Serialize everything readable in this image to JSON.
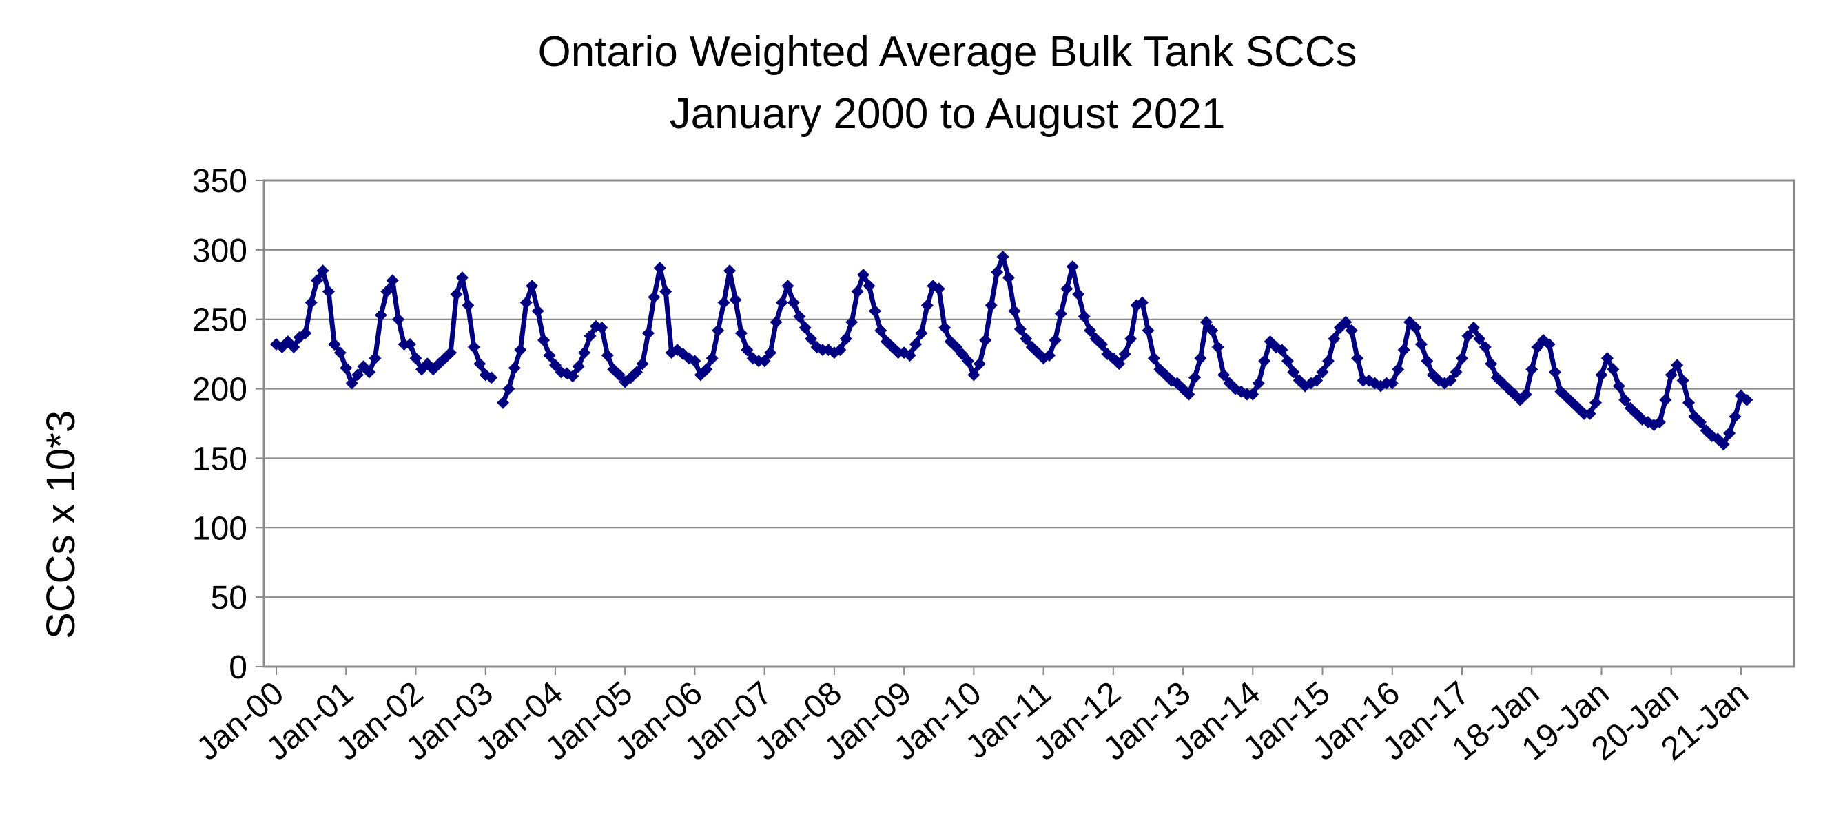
{
  "chart_data": {
    "type": "line",
    "title": "Ontario Weighted Average Bulk Tank SCCs",
    "subtitle": "January 2000 to August 2021",
    "ylabel": "SCCs x 10*3",
    "xlabel": "",
    "ylim": [
      0,
      350
    ],
    "yticks": [
      0,
      50,
      100,
      150,
      200,
      250,
      300,
      350
    ],
    "grid": true,
    "legend": "none",
    "x_tick_labels": [
      "Jan-00",
      "Jan-01",
      "Jan-02",
      "Jan-03",
      "Jan-04",
      "Jan-05",
      "Jan-06",
      "Jan-07",
      "Jan-08",
      "Jan-09",
      "Jan-10",
      "Jan-11",
      "Jan-12",
      "Jan-13",
      "Jan-14",
      "Jan-15",
      "Jan-16",
      "Jan-17",
      "18-Jan",
      "19-Jan",
      "20-Jan",
      "21-Jan"
    ],
    "x_start": "2000-01",
    "x_end": "2021-08",
    "series_color": "#000080",
    "series": [
      {
        "name": "",
        "segments": [
          {
            "start": "2000-01",
            "values": [
              232,
              230,
              234,
              230,
              237,
              240,
              262,
              278,
              285,
              270,
              232,
              226,
              215,
              204,
              210,
              216,
              212,
              222,
              253,
              270,
              278,
              250,
              232,
              232,
              222,
              214,
              218,
              214,
              218,
              222,
              226,
              268,
              280,
              260,
              230,
              218,
              210,
              208
            ]
          },
          {
            "start": "2003-04",
            "values": [
              190,
              200,
              215,
              228,
              262,
              274,
              256,
              235,
              224,
              217,
              212,
              211,
              209,
              216,
              226,
              238,
              245,
              244,
              224,
              214,
              210,
              205,
              208,
              212,
              218,
              240,
              266,
              287,
              270,
              226,
              228,
              225,
              222,
              220,
              210,
              214,
              222,
              242,
              262,
              285,
              264,
              240,
              228,
              222,
              220,
              220,
              226,
              248,
              262,
              274,
              262,
              252,
              244,
              236,
              230,
              228,
              228,
              226,
              228,
              236,
              248,
              270,
              282,
              274,
              256,
              242,
              234,
              230,
              226,
              226,
              224,
              232,
              240,
              260,
              274,
              272,
              244,
              234,
              230,
              225,
              220,
              210,
              218,
              235,
              260,
              284,
              295,
              280,
              256,
              243,
              236,
              230,
              226,
              222,
              224,
              235,
              254,
              272,
              288,
              268,
              252,
              242,
              236,
              232,
              225,
              222,
              218,
              225,
              236,
              260,
              262,
              242,
              222,
              214,
              210,
              206,
              204,
              200,
              196,
              208,
              222,
              248,
              242,
              230,
              210,
              204,
              200,
              198,
              196,
              196,
              204,
              220,
              234,
              230,
              228,
              220,
              212,
              206,
              202,
              204,
              206,
              212,
              220,
              236,
              244,
              248,
              242,
              222,
              206,
              206,
              204,
              202,
              204,
              204,
              214,
              228,
              248,
              244,
              232,
              220,
              210,
              206,
              204,
              206,
              212,
              222,
              238,
              244,
              236,
              230,
              218,
              208,
              204,
              200,
              196,
              192,
              196,
              214,
              230,
              235,
              232,
              212,
              198,
              194,
              190,
              186,
              182,
              182,
              190,
              210,
              222,
              214,
              202,
              192,
              186,
              182,
              178,
              176,
              174,
              176,
              192,
              210,
              217,
              206,
              190,
              180,
              176,
              170,
              166,
              164,
              160,
              168,
              180,
              195,
              192
            ]
          }
        ]
      }
    ]
  }
}
